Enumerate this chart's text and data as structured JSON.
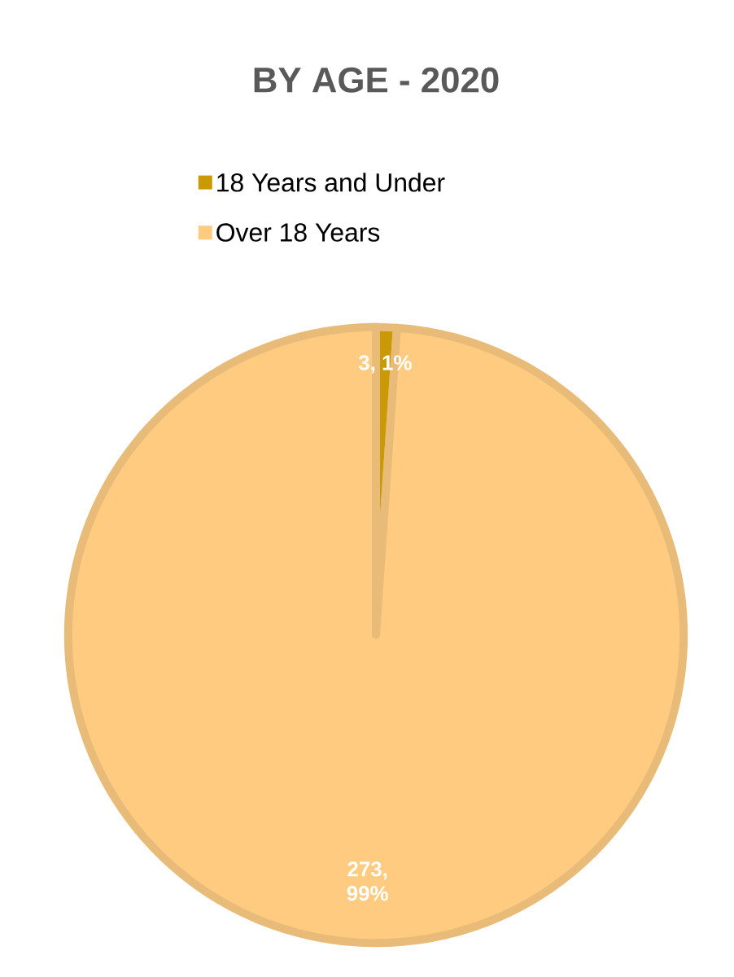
{
  "chart_data": {
    "type": "pie",
    "title": "BY AGE - 2020",
    "categories": [
      "18 Years and Under",
      "Over 18 Years"
    ],
    "values": [
      3,
      273
    ],
    "colors": [
      "#c99a06",
      "#fecb81"
    ],
    "value_labels": [
      "3, 1%",
      "273, 99%"
    ],
    "legend": "top"
  }
}
